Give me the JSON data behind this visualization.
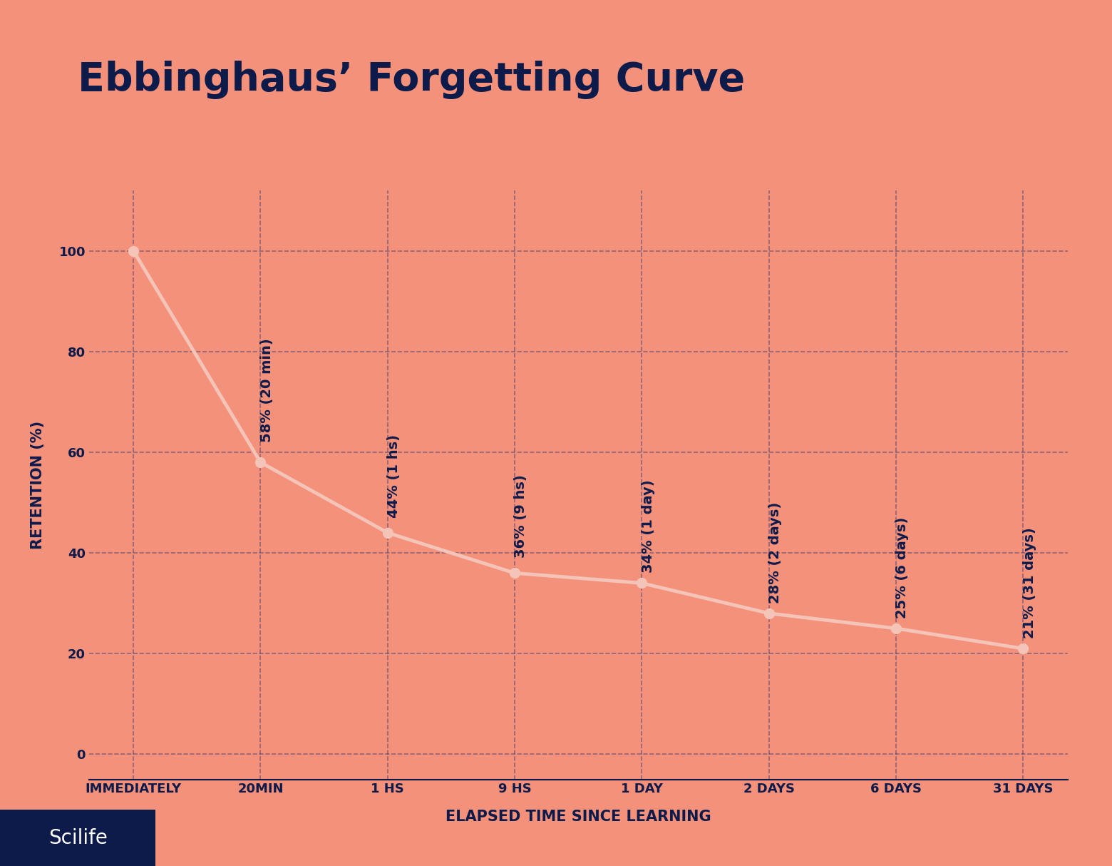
{
  "title": "Ebbinghaus’ Forgetting Curve",
  "title_color": "#0d1b4b",
  "title_fontsize": 40,
  "background_color": "#f4917a",
  "plot_bg_color": "#f4917a",
  "line_color": "#f5c4b8",
  "line_width": 3.5,
  "marker_color": "#f5c4b8",
  "marker_size": 10,
  "grid_color": "#1a2a6c",
  "grid_alpha": 0.45,
  "grid_linestyle": "--",
  "xlabel": "ELAPSED TIME SINCE LEARNING",
  "ylabel": "RETENTION (%)",
  "xlabel_fontsize": 15,
  "ylabel_fontsize": 15,
  "axis_label_color": "#0d1b4b",
  "tick_color": "#0d1b4b",
  "tick_fontsize": 13,
  "categories": [
    "IMMEDIATELY",
    "20MIN",
    "1 HS",
    "9 HS",
    "1 DAY",
    "2 DAYS",
    "6 DAYS",
    "31 DAYS"
  ],
  "x_values": [
    0,
    1,
    2,
    3,
    4,
    5,
    6,
    7
  ],
  "y_values": [
    100,
    58,
    44,
    36,
    34,
    28,
    25,
    21
  ],
  "annotations": [
    "58% (20 min)",
    "44% (1 hs)",
    "36% (9 hs)",
    "34% (1 day)",
    "28% (2 days)",
    "25% (6 days)",
    "21% (31 days)"
  ],
  "annotation_indices": [
    1,
    2,
    3,
    4,
    5,
    6,
    7
  ],
  "annotation_color": "#0d1b4b",
  "annotation_fontsize": 14,
  "yticks": [
    0,
    20,
    40,
    60,
    80,
    100
  ],
  "ylim": [
    -5,
    112
  ],
  "xlim": [
    -0.35,
    7.35
  ],
  "scilife_box_color": "#0d1b4b",
  "scilife_text": "Scilife",
  "scilife_text_color": "#ffffff",
  "scilife_fontsize": 20,
  "bottom_bar_height": 0.08
}
